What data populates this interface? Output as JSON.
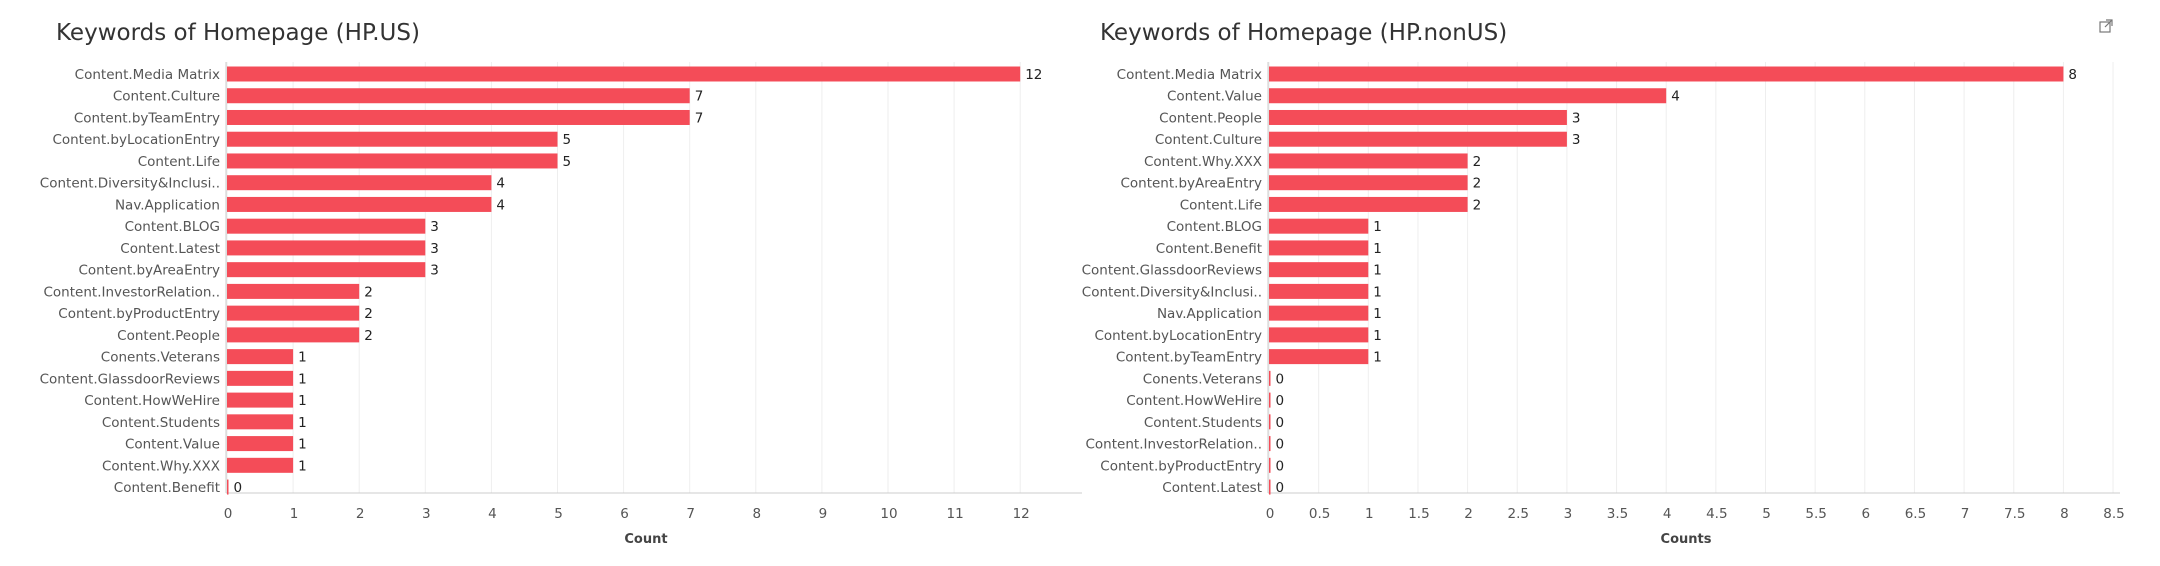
{
  "colors": {
    "bar": "#f44c58",
    "grid": "#eeeeee",
    "axis": "#cccccc",
    "text": "#555555"
  },
  "header": {
    "open_icon": "external-link-icon"
  },
  "chart_data": [
    {
      "type": "bar",
      "orientation": "horizontal",
      "title": "Keywords of Homepage (HP.US)",
      "xlabel": "Count",
      "ylabel": "",
      "xlim": [
        0,
        13
      ],
      "ticks": [
        "0",
        "1",
        "2",
        "3",
        "4",
        "5",
        "6",
        "7",
        "8",
        "9",
        "10",
        "11",
        "12"
      ],
      "grid": true,
      "categories": [
        "Content.Media Matrix",
        "Content.Culture",
        "Content.byTeamEntry",
        "Content.byLocationEntry",
        "Content.Life",
        "Content.Diversity&Inclusi..",
        "Nav.Application",
        "Content.BLOG",
        "Content.Latest",
        "Content.byAreaEntry",
        "Content.InvestorRelation..",
        "Content.byProductEntry",
        "Content.People",
        "Conents.Veterans",
        "Content.GlassdoorReviews",
        "Content.HowWeHire",
        "Content.Students",
        "Content.Value",
        "Content.Why.XXX",
        "Content.Benefit"
      ],
      "values": [
        12,
        7,
        7,
        5,
        5,
        4,
        4,
        3,
        3,
        3,
        2,
        2,
        2,
        1,
        1,
        1,
        1,
        1,
        1,
        0
      ],
      "labels": [
        "12",
        "7",
        "7",
        "5",
        "5",
        "4",
        "4",
        "3",
        "3",
        "3",
        "2",
        "2",
        "2",
        "1",
        "1",
        "1",
        "1",
        "1",
        "1",
        "0"
      ]
    },
    {
      "type": "bar",
      "orientation": "horizontal",
      "title": "Keywords of Homepage (HP.nonUS)",
      "xlabel": "Counts",
      "ylabel": "",
      "xlim": [
        0,
        8.5
      ],
      "ticks": [
        "0",
        "0.5",
        "1",
        "1.5",
        "2",
        "2.5",
        "3",
        "3.5",
        "4",
        "4.5",
        "5",
        "5.5",
        "6",
        "6.5",
        "7",
        "7.5",
        "8",
        "8.5"
      ],
      "grid": true,
      "categories": [
        "Content.Media Matrix",
        "Content.Value",
        "Content.People",
        "Content.Culture",
        "Content.Why.XXX",
        "Content.byAreaEntry",
        "Content.Life",
        "Content.BLOG",
        "Content.Benefit",
        "Content.GlassdoorReviews",
        "Content.Diversity&Inclusi..",
        "Nav.Application",
        "Content.byLocationEntry",
        "Content.byTeamEntry",
        "Conents.Veterans",
        "Content.HowWeHire",
        "Content.Students",
        "Content.InvestorRelation..",
        "Content.byProductEntry",
        "Content.Latest"
      ],
      "values": [
        8,
        4,
        3,
        3,
        2,
        2,
        2,
        1,
        1,
        1,
        1,
        1,
        1,
        1,
        0,
        0,
        0,
        0,
        0,
        0
      ],
      "labels": [
        "8",
        "4",
        "3",
        "3",
        "2",
        "2",
        "2",
        "1",
        "1",
        "1",
        "1",
        "1",
        "1",
        "1",
        "0",
        "0",
        "0",
        "0",
        "0",
        "0"
      ]
    }
  ]
}
